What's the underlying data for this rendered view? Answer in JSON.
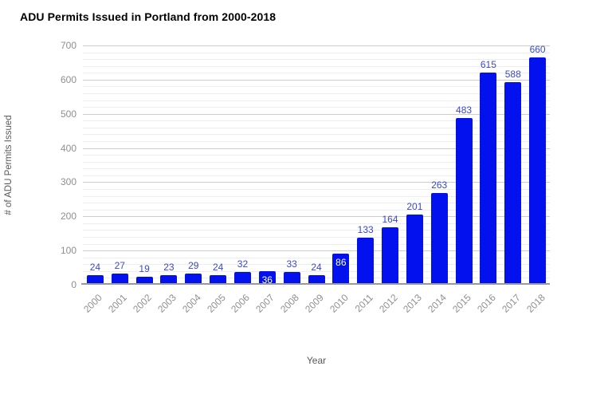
{
  "page": {
    "background": "#ffffff"
  },
  "chart_data": {
    "type": "bar",
    "title": "ADU Permits Issued in Portland from 2000-2018",
    "categories": [
      "2000",
      "2001",
      "2002",
      "2003",
      "2004",
      "2005",
      "2006",
      "2007",
      "2008",
      "2009",
      "2010",
      "2011",
      "2012",
      "2013",
      "2014",
      "2015",
      "2016",
      "2017",
      "2018"
    ],
    "values": [
      24,
      27,
      19,
      23,
      29,
      24,
      32,
      36,
      33,
      24,
      86,
      133,
      164,
      201,
      263,
      483,
      615,
      588,
      660
    ],
    "xlabel": "Year",
    "ylabel": "# of ADU Permits Issued",
    "ylim": [
      0,
      700
    ],
    "y_ticks": [
      0,
      100,
      200,
      300,
      400,
      500,
      600,
      700
    ],
    "minor_gridline_step": 20,
    "grid": true,
    "legend": "none",
    "inside_label_indices": [
      7,
      10
    ],
    "colors": {
      "bar": "#0211ee",
      "value_label": "#3b49cf",
      "inside_value_label": "#ffffff",
      "title": "#000000",
      "tick_label": "#8f8f8f",
      "axis_title": "#585858",
      "gridline_major": "#cccccc",
      "gridline_minor": "#ededed",
      "axis_line": "#999999",
      "background": "#ffffff"
    }
  }
}
